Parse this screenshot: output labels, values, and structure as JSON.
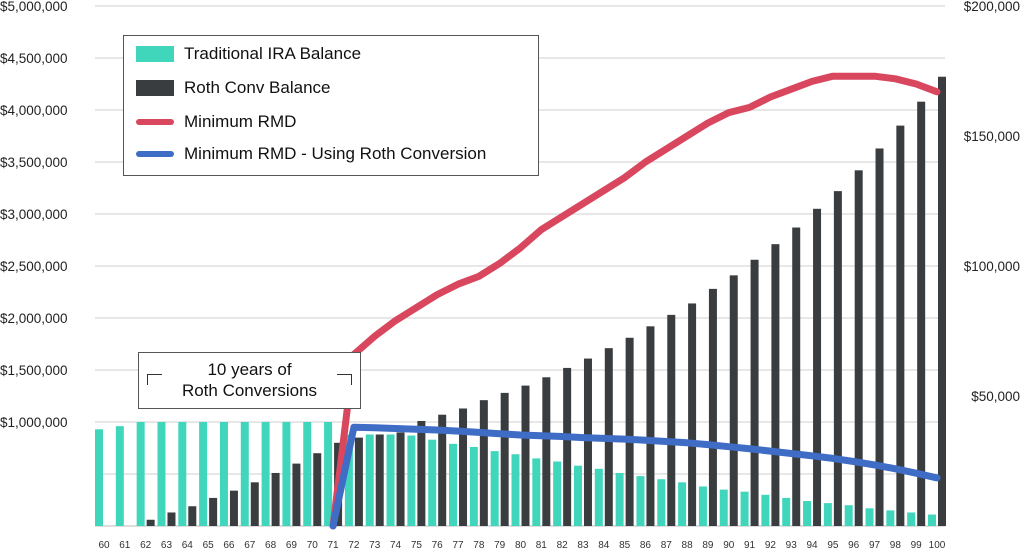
{
  "chart_data": {
    "type": "bar",
    "title": "",
    "xlabel": "",
    "ylabel": "",
    "ylim": [
      0,
      5000000
    ],
    "y2lim": [
      0,
      200000
    ],
    "grid": true,
    "legend_position": "top-left",
    "left_ticks": [
      "$1,000,000",
      "$1,500,000",
      "$2,000,000",
      "$2,500,000",
      "$3,000,000",
      "$3,500,000",
      "$4,000,000",
      "$4,500,000",
      "$5,000,000"
    ],
    "left_tick_values": [
      1000000,
      1500000,
      2000000,
      2500000,
      3000000,
      3500000,
      4000000,
      4500000,
      5000000
    ],
    "right_ticks": [
      "$50,000",
      "$100,000",
      "$150,000",
      "$200,000"
    ],
    "right_tick_values": [
      50000,
      100000,
      150000,
      200000
    ],
    "categories": [
      "60",
      "61",
      "62",
      "63",
      "64",
      "65",
      "66",
      "67",
      "68",
      "69",
      "70",
      "71",
      "72",
      "73",
      "74",
      "75",
      "76",
      "77",
      "78",
      "79",
      "80",
      "81",
      "82",
      "83",
      "84",
      "85",
      "86",
      "87",
      "88",
      "89",
      "90",
      "91",
      "92",
      "93",
      "94",
      "95",
      "96",
      "97",
      "98",
      "99",
      "100"
    ],
    "series": [
      {
        "name": "Traditional IRA Balance",
        "type": "bar",
        "axis": "left",
        "color": "#40d6bc",
        "values": [
          930000,
          960000,
          1000000,
          1000000,
          1000000,
          1000000,
          1000000,
          1000000,
          1000000,
          1000000,
          1000000,
          1000000,
          880000,
          880000,
          880000,
          870000,
          830000,
          790000,
          760000,
          720000,
          690000,
          650000,
          620000,
          580000,
          550000,
          510000,
          480000,
          450000,
          420000,
          380000,
          350000,
          330000,
          300000,
          270000,
          240000,
          220000,
          200000,
          170000,
          150000,
          130000,
          110000
        ]
      },
      {
        "name": "Roth Conv Balance",
        "type": "bar",
        "axis": "left",
        "color": "#3a3d40",
        "values": [
          0,
          0,
          60000,
          130000,
          190000,
          270000,
          340000,
          420000,
          510000,
          600000,
          700000,
          800000,
          850000,
          880000,
          900000,
          1010000,
          1070000,
          1130000,
          1210000,
          1280000,
          1350000,
          1430000,
          1520000,
          1610000,
          1710000,
          1810000,
          1920000,
          2030000,
          2140000,
          2280000,
          2410000,
          2560000,
          2710000,
          2870000,
          3050000,
          3220000,
          3420000,
          3630000,
          3850000,
          4080000,
          4320000
        ]
      },
      {
        "name": "Minimum RMD",
        "type": "line",
        "axis": "right",
        "color": "#d9475f",
        "values": [
          null,
          null,
          null,
          null,
          null,
          null,
          null,
          null,
          null,
          null,
          null,
          0,
          66000,
          73000,
          79000,
          84000,
          89000,
          93000,
          96000,
          101000,
          107000,
          114000,
          119000,
          124000,
          129000,
          134000,
          140000,
          145000,
          150000,
          155000,
          159000,
          161000,
          165000,
          168000,
          171000,
          173000,
          173000,
          173000,
          172000,
          170000,
          167000
        ]
      },
      {
        "name": "Minimum RMD - Using Roth Conversion",
        "type": "line",
        "axis": "right",
        "color": "#3f6cc4",
        "values": [
          null,
          null,
          null,
          null,
          null,
          null,
          null,
          null,
          null,
          null,
          null,
          0,
          38000,
          37800,
          37500,
          37200,
          36900,
          36500,
          36000,
          35500,
          35000,
          34700,
          34400,
          34000,
          33700,
          33400,
          33000,
          32500,
          32000,
          31300,
          30500,
          29700,
          28800,
          27900,
          27000,
          26000,
          24800,
          23500,
          22000,
          20300,
          18500
        ]
      }
    ]
  },
  "legend": {
    "items": [
      {
        "label": "Traditional IRA Balance",
        "color": "#40d6bc",
        "kind": "box"
      },
      {
        "label": "Roth Conv Balance",
        "color": "#3a3d40",
        "kind": "box"
      },
      {
        "label": "Minimum RMD",
        "color": "#d9475f",
        "kind": "line"
      },
      {
        "label": "Minimum RMD - Using Roth Conversion",
        "color": "#3f6cc4",
        "kind": "line"
      }
    ]
  },
  "annotation": {
    "line1": "10 years of",
    "line2": "Roth Conversions"
  }
}
